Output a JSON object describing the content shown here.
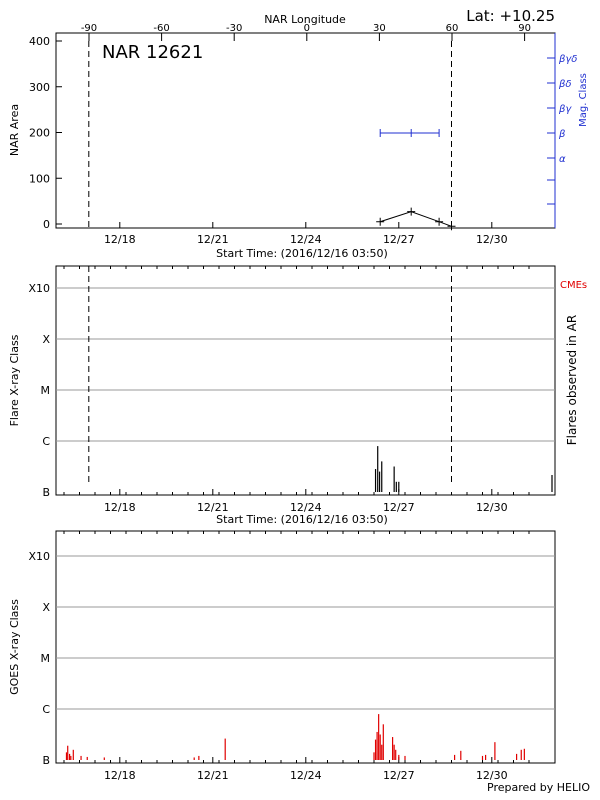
{
  "header": {
    "lat_label": "Lat: +10.25",
    "footer": "Prepared by HELIO"
  },
  "chart_data": [
    {
      "type": "line",
      "title": "NAR 12621",
      "ylabel": "NAR Area",
      "xlabel": "Start Time: (2016/12/16 03:50)",
      "top_axis_label": "NAR Longitude",
      "right_axis_label": "Mag. Class",
      "ylim": [
        0,
        400
      ],
      "yticks": [
        "0",
        "100",
        "200",
        "300",
        "400"
      ],
      "xlim_days": [
        0,
        15
      ],
      "xticks": [
        "12/18",
        "12/21",
        "12/24",
        "12/27",
        "12/30"
      ],
      "top_ticks": [
        "-90",
        "-60",
        "-30",
        "0",
        "30",
        "60",
        "90"
      ],
      "mag_ticks": [
        "α",
        "β",
        "βγ",
        "βδ",
        "βγδ"
      ],
      "dashed_lines_days": [
        0.8,
        12.5
      ],
      "area_series": {
        "name": "NAR Area",
        "x_days": [
          10.2,
          11.2,
          12.1,
          12.5
        ],
        "values": [
          5,
          27,
          5,
          -5
        ]
      },
      "mag_series": {
        "name": "Mag. Class",
        "x_days": [
          10.2,
          11.2,
          12.1
        ],
        "class": "β"
      },
      "grid": false
    },
    {
      "type": "bar",
      "ylabel": "Flare X-ray Class",
      "right_axis_label": "Flares observed in AR",
      "right_top_label": "CMEs",
      "xlabel": "Start Time: (2016/12/16 03:50)",
      "yticks": [
        "B",
        "C",
        "M",
        "X",
        "X10"
      ],
      "xticks": [
        "12/18",
        "12/21",
        "12/24",
        "12/27",
        "12/30"
      ],
      "dashed_lines_days": [
        0.8,
        12.5
      ],
      "x_days": [
        10.05,
        10.12,
        10.18,
        10.25,
        10.65,
        10.72,
        10.8
      ],
      "values_log": [
        0.45,
        0.9,
        0.4,
        0.6,
        0.5,
        0.2,
        0.2
      ],
      "grid": true
    },
    {
      "type": "bar",
      "ylabel": "GOES X-ray Class",
      "yticks": [
        "B",
        "C",
        "M",
        "X",
        "X10"
      ],
      "xticks": [
        "12/18",
        "12/21",
        "12/24",
        "12/27",
        "12/30"
      ],
      "x_days": [
        0.08,
        0.12,
        0.18,
        0.22,
        0.3,
        0.55,
        0.75,
        1.3,
        4.2,
        4.35,
        5.2,
        10.0,
        10.05,
        10.1,
        10.15,
        10.2,
        10.25,
        10.3,
        10.6,
        10.65,
        10.7,
        10.8,
        11.0,
        12.6,
        12.8,
        13.5,
        13.6,
        13.9,
        14.6,
        14.75,
        14.85
      ],
      "values_log": [
        0.15,
        0.28,
        0.12,
        0.08,
        0.2,
        0.08,
        0.06,
        0.05,
        0.05,
        0.08,
        0.42,
        0.15,
        0.4,
        0.55,
        0.9,
        0.5,
        0.3,
        0.7,
        0.45,
        0.3,
        0.2,
        0.1,
        0.08,
        0.1,
        0.18,
        0.08,
        0.1,
        0.35,
        0.12,
        0.2,
        0.22
      ],
      "color": "#e00000",
      "grid": true
    }
  ]
}
